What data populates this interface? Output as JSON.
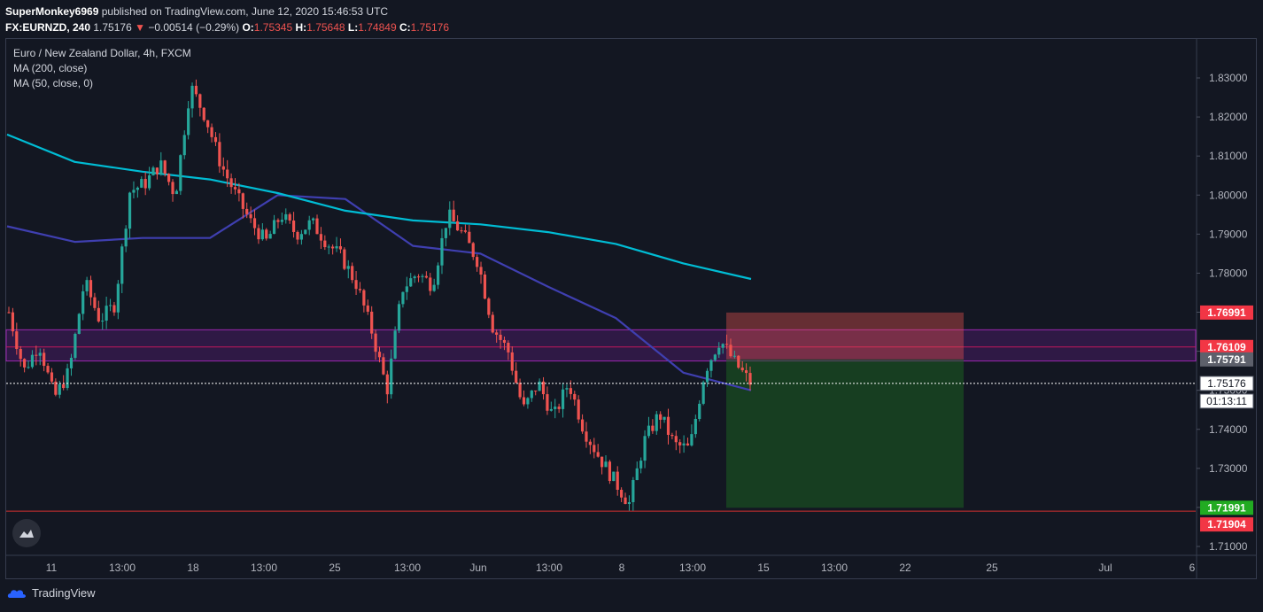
{
  "header": {
    "author": "SuperMonkey6969",
    "published_text": "published on TradingView.com, June 12, 2020 15:46:53 UTC",
    "symbol": "FX:EURNZD, 240",
    "last": "1.75176",
    "arrow": "▼",
    "change": "−0.00514 (−0.29%)",
    "o_label": "O:",
    "o": "1.75345",
    "h_label": "H:",
    "h": "1.75648",
    "l_label": "L:",
    "l": "1.74849",
    "c_label": "C:",
    "c": "1.75176"
  },
  "legend": {
    "title": "Euro / New Zealand Dollar, 4h, FXCM",
    "ma200": "MA (200, close)",
    "ma50": "MA (50, close, 0)"
  },
  "footer": {
    "brand": "TradingView"
  },
  "icons": {
    "brand_icon": "tradingview-cloud-icon",
    "badge_icon": "tradingview-cloud-icon"
  },
  "colors": {
    "bg": "#131722",
    "up": "#26a69a",
    "down": "#ef5350",
    "ma200": "#00bcd4",
    "ma50": "#3f3fb0",
    "stop_zone": "#ef5350",
    "target_zone": "#1b5e20",
    "resistance_band": "#7b1fa2",
    "support_line": "#d32f2f"
  },
  "chart_data": {
    "type": "candlestick",
    "symbol": "FX:EURNZD",
    "timeframe": "240",
    "ylim": [
      1.705,
      1.838
    ],
    "y_ticks": [
      "1.83000",
      "1.82000",
      "1.81000",
      "1.80000",
      "1.79000",
      "1.78000",
      "1.77000",
      "1.76000",
      "1.75000",
      "1.74000",
      "1.73000",
      "1.72000",
      "1.71000"
    ],
    "x_ticks": [
      "11",
      "13:00",
      "18",
      "13:00",
      "25",
      "13:00",
      "Jun",
      "13:00",
      "8",
      "13:00",
      "15",
      "13:00",
      "22",
      "25",
      "Jul",
      "6"
    ],
    "price_labels": [
      {
        "value": "1.76991",
        "color": "#f23645"
      },
      {
        "value": "1.76109",
        "color": "#f23645"
      },
      {
        "value": "1.75791",
        "color": "#5d606b"
      },
      {
        "value": "1.75176",
        "color": "#ffffff"
      },
      {
        "value": "01:13:11",
        "color": "#ffffff"
      },
      {
        "value": "1.71991",
        "color": "#22ab22"
      },
      {
        "value": "1.71904",
        "color": "#f23645"
      }
    ],
    "position": {
      "side": "short",
      "entry": 1.75791,
      "stop": 1.76991,
      "target": 1.71991
    },
    "zones": {
      "resistance_band": [
        1.7575,
        1.7655
      ],
      "resistance_mid": 1.76109,
      "support_line": 1.71904
    },
    "anchors": [
      1.77,
      1.755,
      1.762,
      1.748,
      1.755,
      1.778,
      1.768,
      1.772,
      1.801,
      1.803,
      1.808,
      1.8,
      1.828,
      1.82,
      1.808,
      1.8,
      1.793,
      1.788,
      1.795,
      1.79,
      1.793,
      1.788,
      1.784,
      1.777,
      1.765,
      1.75,
      1.776,
      1.78,
      1.777,
      1.795,
      1.79,
      1.783,
      1.766,
      1.76,
      1.745,
      1.752,
      1.743,
      1.752,
      1.74,
      1.733,
      1.727,
      1.721,
      1.737,
      1.744,
      1.736,
      1.735,
      1.755,
      1.763,
      1.757,
      1.752
    ],
    "ma200": [
      1.8155,
      1.8085,
      1.806,
      1.804,
      1.8005,
      1.796,
      1.7935,
      1.7925,
      1.7905,
      1.7875,
      1.7825,
      1.7785
    ],
    "ma50": [
      1.792,
      1.788,
      1.789,
      1.789,
      1.8,
      1.799,
      1.787,
      1.785,
      1.7765,
      1.7685,
      1.7545,
      1.75
    ]
  }
}
